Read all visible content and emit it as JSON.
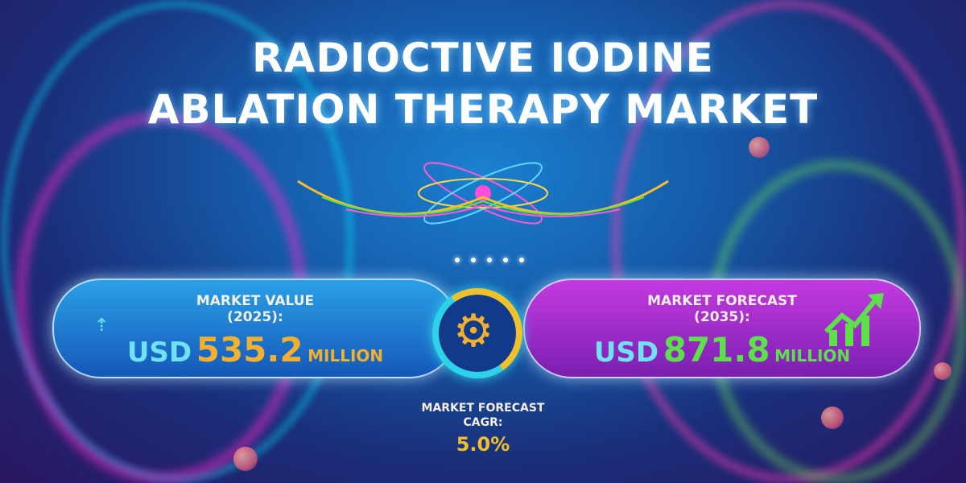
{
  "title": {
    "line1": "RADIOCTIVE IODINE",
    "line2": "ABLATION THERAPY MARKET"
  },
  "market_value": {
    "label_line1": "MARKET VALUE",
    "label_line2": "(2025):",
    "currency": "USD",
    "amount": "535.2",
    "unit": "MILLION",
    "icon": "up-arrow-icon"
  },
  "market_forecast": {
    "label_line1": "MARKET FORECAST",
    "label_line2": "(2035):",
    "currency": "USD",
    "amount": "871.8",
    "unit": "MILLION",
    "icon": "growth-chart-icon"
  },
  "cagr": {
    "label_line1": "MARKET FORECAST",
    "label_line2": "CAGR:",
    "value": "5.0%"
  },
  "center_icon": "gear-icon",
  "colors": {
    "value_amount": "#f2b030",
    "forecast_amount": "#5de04a",
    "usd": "#6fe2f4",
    "left_pill": "#1f7fd4",
    "right_pill": "#a32ed0",
    "cagr_value": "#f2c02a"
  }
}
